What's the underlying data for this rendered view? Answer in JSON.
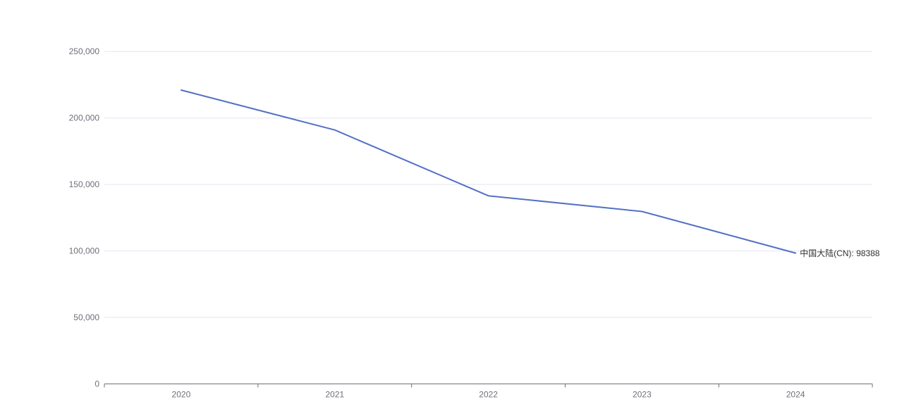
{
  "page": {
    "background_color": "#ffffff"
  },
  "chart_data": {
    "type": "line",
    "title": "",
    "xlabel": "",
    "ylabel": "",
    "categories": [
      "2020",
      "2021",
      "2022",
      "2023",
      "2024"
    ],
    "series": [
      {
        "name": "中国大陆(CN)",
        "values": [
          221000,
          191000,
          141500,
          129700,
          98388
        ],
        "color": "#5470C6",
        "end_label": "中国大陆(CN): 98388"
      }
    ],
    "ylim": [
      0,
      250000
    ],
    "ytick_interval": 50000,
    "ytick_labels": [
      "0",
      "50,000",
      "100,000",
      "150,000",
      "200,000",
      "250,000"
    ],
    "grid": true,
    "legend_position": "none",
    "markers": false
  },
  "style": {
    "line_color": "#5470C6",
    "grid_color": "#E0E6F1",
    "axis_color": "#6E7079",
    "tick_label_color": "#6E7079",
    "end_label_color": "#333333"
  }
}
